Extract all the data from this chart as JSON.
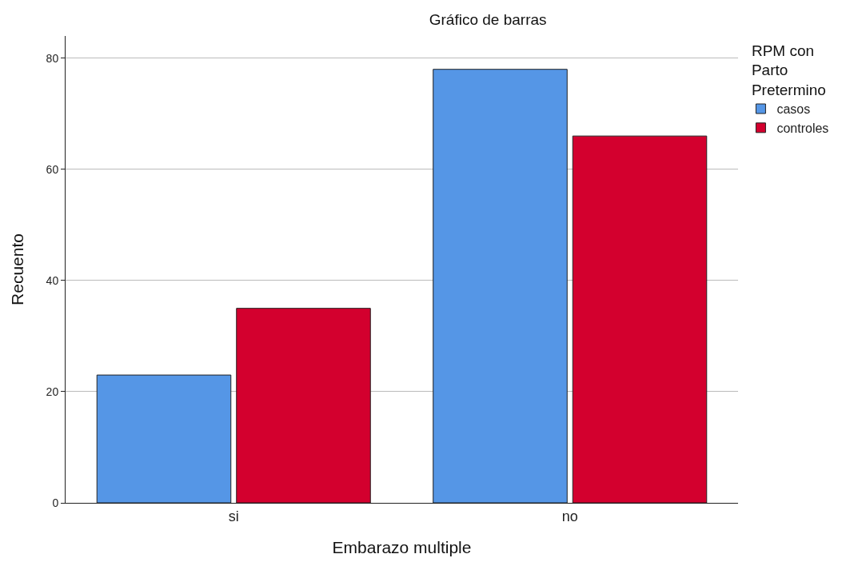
{
  "chart_data": {
    "type": "bar",
    "title": "Gráfico de barras",
    "xlabel": "Embarazo multiple",
    "ylabel": "Recuento",
    "legend_title": "RPM con Parto Pretermino",
    "categories": [
      "si",
      "no"
    ],
    "series": [
      {
        "name": "casos",
        "color": "#5596e6",
        "values": [
          23,
          78
        ]
      },
      {
        "name": "controles",
        "color": "#d3002e",
        "values": [
          35,
          66
        ]
      }
    ],
    "ylim": [
      0,
      84
    ],
    "yticks": [
      0,
      20,
      40,
      60,
      80
    ],
    "grid": "y",
    "legend": "top right"
  }
}
